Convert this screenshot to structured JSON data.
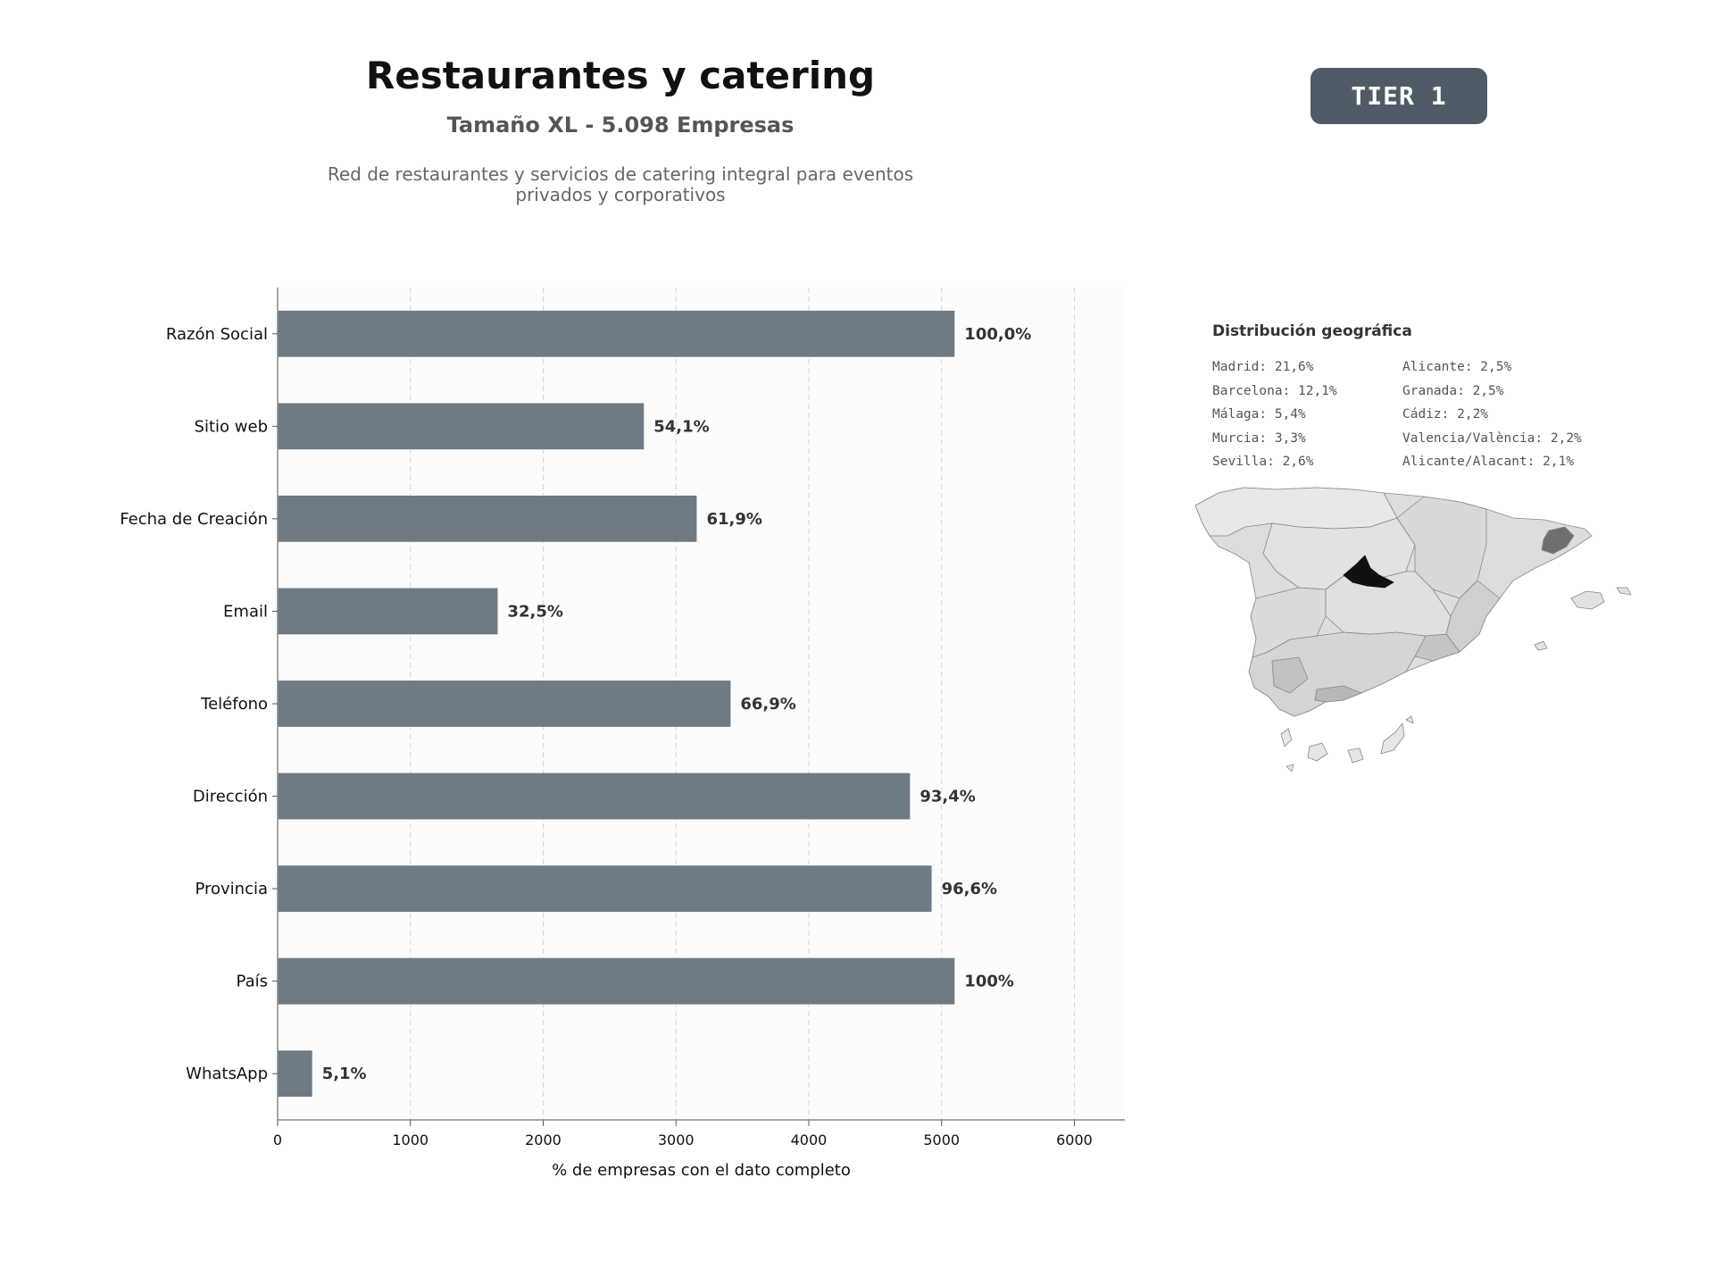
{
  "header": {
    "title": "Restaurantes y catering",
    "subtitle": "Tamaño XL - 5.098 Empresas",
    "description": "Red de restaurantes y servicios de catering integral para eventos privados y corporativos",
    "tier_badge": "TIER 1"
  },
  "chart_data": {
    "type": "bar",
    "orientation": "horizontal",
    "categories": [
      "Razón Social",
      "Sitio web",
      "Fecha de Creación",
      "Email",
      "Teléfono",
      "Dirección",
      "Provincia",
      "País",
      "WhatsApp"
    ],
    "values": [
      5098,
      2758,
      3156,
      1657,
      3411,
      4762,
      4925,
      5098,
      260
    ],
    "data_labels": [
      "100,0%",
      "54,1%",
      "61,9%",
      "32,5%",
      "66,9%",
      "93,4%",
      "96,6%",
      "100%",
      "5,1%"
    ],
    "xlabel": "% de empresas con el dato completo",
    "ylabel": "",
    "xlim": [
      0,
      6380
    ],
    "xticks": [
      0,
      1000,
      2000,
      3000,
      4000,
      5000,
      6000
    ],
    "grid": "vertical dashed",
    "bar_color": "#6e7a84"
  },
  "geo": {
    "title": "Distribución geográfica",
    "left_column": [
      "Madrid: 21,6%",
      "Barcelona: 12,1%",
      "Málaga: 5,4%",
      "Murcia: 3,3%",
      "Sevilla: 2,6%"
    ],
    "right_column": [
      "Alicante: 2,5%",
      "Granada: 2,5%",
      "Cádiz: 2,2%",
      "Valencia/València: 2,2%",
      "Alicante/Alacant: 2,1%"
    ]
  }
}
